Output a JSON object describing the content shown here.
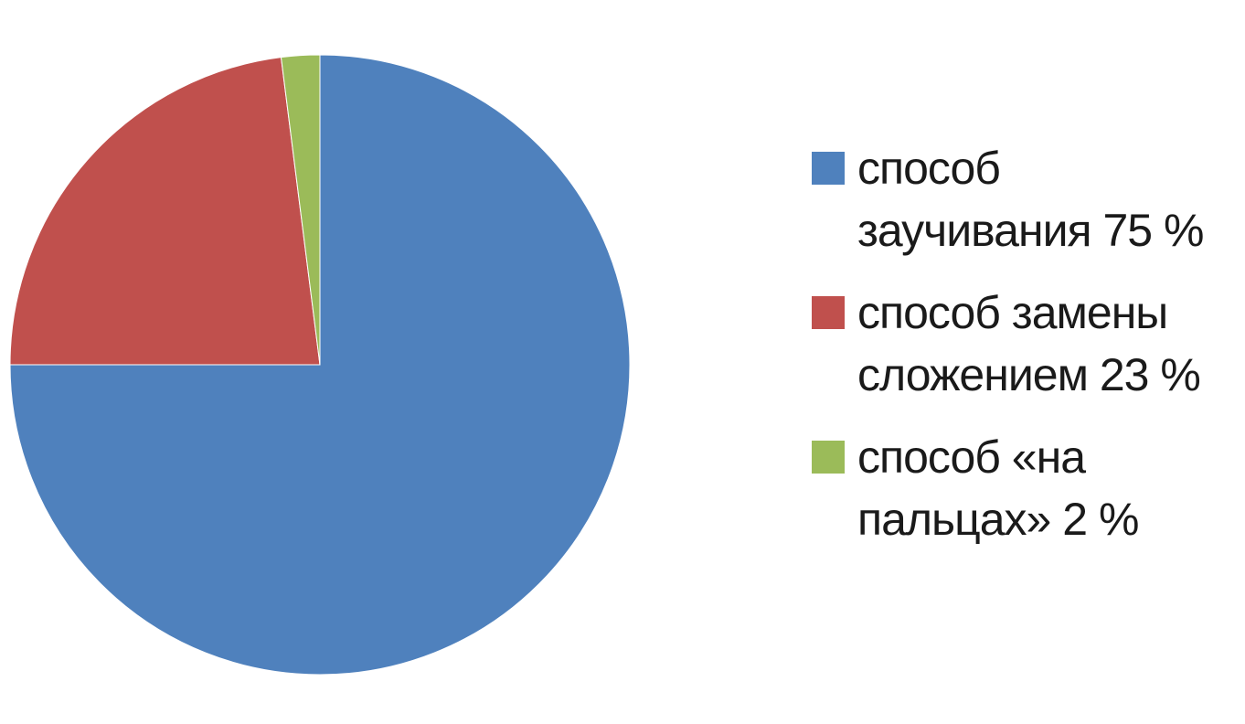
{
  "chart_data": {
    "type": "pie",
    "title": "",
    "legend_position": "right",
    "slices": [
      {
        "label": "способ заучивания 75 %",
        "value": 75,
        "color": "#4F81BD"
      },
      {
        "label": "способ замены сложением 23 %",
        "value": 23,
        "color": "#C0504D"
      },
      {
        "label": "способ «на пальцах» 2 %",
        "value": 2,
        "color": "#9BBB59"
      }
    ]
  }
}
